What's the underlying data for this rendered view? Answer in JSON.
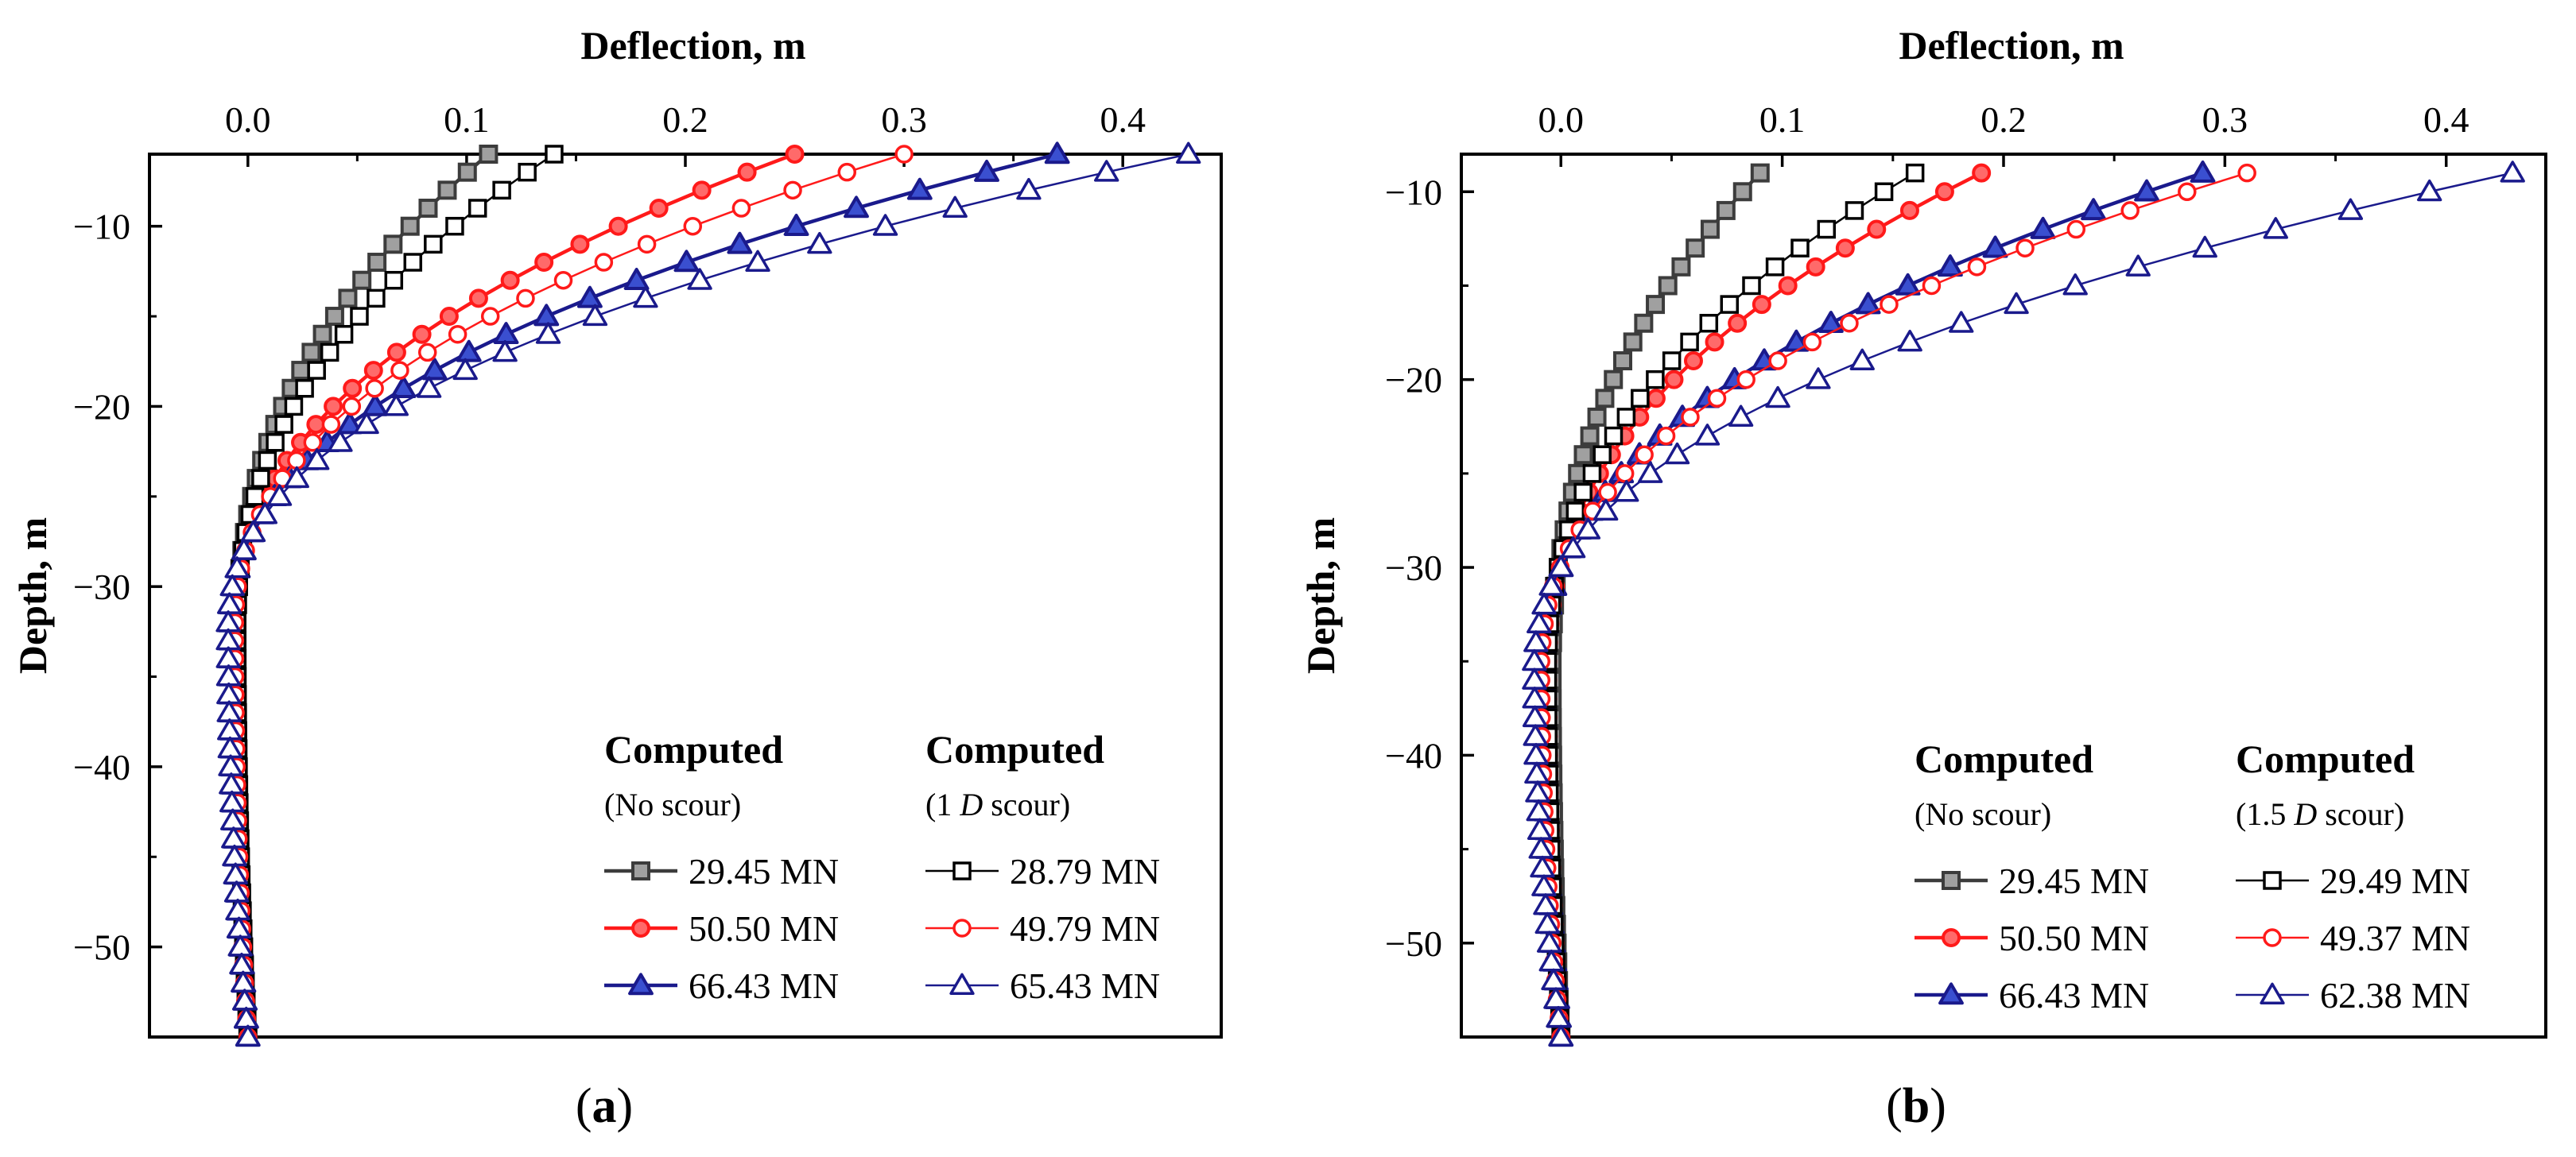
{
  "chart_data": [
    {
      "type": "line",
      "panel_label": [
        "(",
        "a",
        ")"
      ],
      "xlabel": "Deflection, m",
      "ylabel": "Depth, m",
      "xlim": [
        -0.045,
        0.445
      ],
      "ylim": [
        -55,
        -6
      ],
      "x_ticks": [
        0.0,
        0.1,
        0.2,
        0.3,
        0.4
      ],
      "x_tick_labels": [
        "0.0",
        "0.1",
        "0.2",
        "0.3",
        "0.4"
      ],
      "y_ticks": [
        -10,
        -20,
        -30,
        -40,
        -50
      ],
      "y_tick_labels": [
        "−10",
        "−20",
        "−30",
        "−40",
        "−50"
      ],
      "x_axis_position": "top",
      "grid": false,
      "legend_placement": "bottom-right",
      "legend": {
        "col1_title": "Computed",
        "col1_subtitle": [
          "(No scour)"
        ],
        "col2_title": "Computed",
        "col2_subtitle": [
          "(1 ",
          "D",
          " scour)"
        ]
      },
      "depth_points": [
        -6,
        -7,
        -8,
        -9,
        -10,
        -11,
        -12,
        -13,
        -14,
        -15,
        -16,
        -17,
        -18,
        -19,
        -20,
        -21,
        -22,
        -23,
        -24,
        -25,
        -26,
        -27,
        -28,
        -29,
        -30,
        -31,
        -32,
        -33,
        -34,
        -35,
        -36,
        -37,
        -38,
        -39,
        -40,
        -41,
        -42,
        -43,
        -44,
        -45,
        -46,
        -47,
        -48,
        -49,
        -50,
        -51,
        -52,
        -53,
        -54,
        -55
      ],
      "series": [
        {
          "name": "29.45 MN",
          "color": "#3c3c3c",
          "marker": "square",
          "filled": true,
          "x0": 0.11,
          "x_min": -0.005,
          "x_end": 0.0
        },
        {
          "name": "50.50 MN",
          "color": "#ff1a1a",
          "marker": "circle",
          "filled": true,
          "x0": 0.25,
          "x_min": -0.006,
          "x_end": 0.0
        },
        {
          "name": "66.43 MN",
          "color": "#1a1a8c",
          "marker": "triangle",
          "filled": true,
          "x0": 0.37,
          "x_min": -0.008,
          "x_end": 0.0
        },
        {
          "name": "28.79 MN",
          "color": "#000000",
          "marker": "square",
          "filled": false,
          "x0": 0.14,
          "x_min": -0.005,
          "x_end": 0.0
        },
        {
          "name": "49.79 MN",
          "color": "#ff1a1a",
          "marker": "circle",
          "filled": false,
          "x0": 0.3,
          "x_min": -0.006,
          "x_end": 0.0
        },
        {
          "name": "65.43 MN",
          "color": "#1a1a8c",
          "marker": "triangle",
          "filled": false,
          "x0": 0.43,
          "x_min": -0.009,
          "x_end": 0.0
        }
      ]
    },
    {
      "type": "line",
      "panel_label": [
        "(",
        "b",
        ")"
      ],
      "xlabel": "Deflection, m",
      "ylabel": "Depth, m",
      "xlim": [
        -0.045,
        0.445
      ],
      "ylim": [
        -55,
        -8
      ],
      "x_ticks": [
        0.0,
        0.1,
        0.2,
        0.3,
        0.4
      ],
      "x_tick_labels": [
        "0.0",
        "0.1",
        "0.2",
        "0.3",
        "0.4"
      ],
      "y_ticks": [
        -10,
        -20,
        -30,
        -40,
        -50
      ],
      "y_tick_labels": [
        "−10",
        "−20",
        "−30",
        "−40",
        "−50"
      ],
      "x_axis_position": "top",
      "grid": false,
      "legend_placement": "bottom-right",
      "legend": {
        "col1_title": "Computed",
        "col1_subtitle": [
          "(No scour)"
        ],
        "col2_title": "Computed",
        "col2_subtitle": [
          "(1.5 ",
          "D",
          " scour)"
        ]
      },
      "depth_points": [
        -9,
        -10,
        -11,
        -12,
        -13,
        -14,
        -15,
        -16,
        -17,
        -18,
        -19,
        -20,
        -21,
        -22,
        -23,
        -24,
        -25,
        -26,
        -27,
        -28,
        -29,
        -30,
        -31,
        -32,
        -33,
        -34,
        -35,
        -36,
        -37,
        -38,
        -39,
        -40,
        -41,
        -42,
        -43,
        -44,
        -45,
        -46,
        -47,
        -48,
        -49,
        -50,
        -51,
        -52,
        -53,
        -54,
        -55
      ],
      "series": [
        {
          "name": "29.45 MN",
          "color": "#3c3c3c",
          "marker": "square",
          "filled": true,
          "x0": 0.09,
          "x_min": -0.004,
          "x_end": 0.0
        },
        {
          "name": "50.50 MN",
          "color": "#ff1a1a",
          "marker": "circle",
          "filled": true,
          "x0": 0.19,
          "x_min": -0.006,
          "x_end": 0.0
        },
        {
          "name": "66.43 MN",
          "color": "#1a1a8c",
          "marker": "triangle",
          "filled": true,
          "x0": 0.29,
          "x_min": -0.008,
          "x_end": 0.0
        },
        {
          "name": "29.49 MN",
          "color": "#000000",
          "marker": "square",
          "filled": false,
          "x0": 0.16,
          "x_min": -0.006,
          "x_end": 0.0
        },
        {
          "name": "49.37 MN",
          "color": "#ff1a1a",
          "marker": "circle",
          "filled": false,
          "x0": 0.31,
          "x_min": -0.009,
          "x_end": 0.0
        },
        {
          "name": "62.38 MN",
          "color": "#1a1a8c",
          "marker": "triangle",
          "filled": false,
          "x0": 0.43,
          "x_min": -0.012,
          "x_end": 0.0
        }
      ]
    }
  ]
}
